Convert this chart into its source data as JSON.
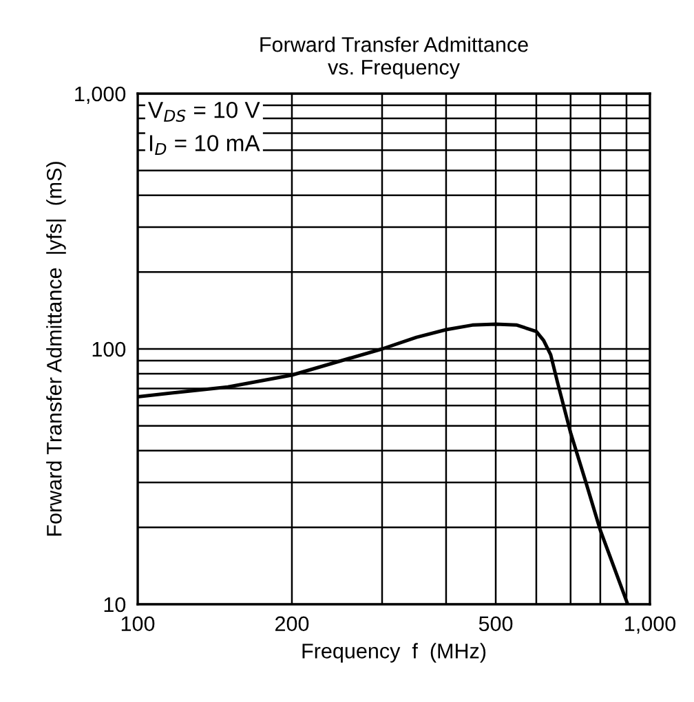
{
  "chart_data": {
    "type": "line",
    "title": "Forward Transfer Admittance\nvs. Frequency",
    "xlabel": "Frequency  f  (MHz)",
    "ylabel": "Forward Transfer Admittance  |yfs|  (mS)",
    "annotations": [
      "V$_{DS}$ = 10 V",
      "I$_{D}$ = 10 mA"
    ],
    "x": [
      100,
      150,
      200,
      250,
      300,
      350,
      400,
      450,
      500,
      550,
      600,
      620,
      640,
      660,
      700,
      750,
      800,
      905
    ],
    "series": [
      {
        "color": "#000000",
        "values": [
          65,
          71,
          79,
          90,
          100,
          111,
          119,
          124,
          125,
          124,
          117,
          108,
          95,
          74,
          47,
          30,
          19.5,
          10
        ]
      }
    ],
    "log": "xy",
    "xlim": [
      100,
      1000
    ],
    "ylim": [
      10,
      1000
    ],
    "xticks": [
      100,
      {
        "value": 200,
        "label": "200"
      },
      {
        "value": 300,
        "label": null
      },
      {
        "value": 400,
        "label": null
      },
      500,
      {
        "value": 600,
        "label": null
      },
      {
        "value": 700,
        "label": null
      },
      {
        "value": 800,
        "label": null
      },
      {
        "value": 900,
        "label": null
      },
      {
        "value": 1000,
        "label": "1,000"
      }
    ],
    "yticks": [
      10,
      {
        "value": 20,
        "label": null
      },
      {
        "value": 30,
        "label": null
      },
      {
        "value": 40,
        "label": null
      },
      {
        "value": 50,
        "label": null
      },
      {
        "value": 60,
        "label": null
      },
      {
        "value": 70,
        "label": null
      },
      {
        "value": 80,
        "label": null
      },
      {
        "value": 90,
        "label": null
      },
      100,
      {
        "value": 200,
        "label": null
      },
      {
        "value": 300,
        "label": null
      },
      {
        "value": 400,
        "label": null
      },
      {
        "value": 500,
        "label": null
      },
      {
        "value": 600,
        "label": null
      },
      {
        "value": 700,
        "label": null
      },
      {
        "value": 800,
        "label": null
      },
      {
        "value": 900,
        "label": null
      },
      {
        "value": 1000,
        "label": "1,000"
      }
    ],
    "grid": true,
    "marker": "none",
    "line_style": "solid",
    "legend": false
  }
}
